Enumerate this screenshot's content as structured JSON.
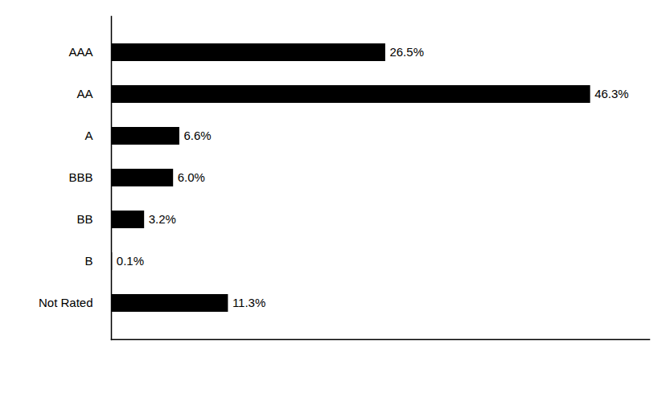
{
  "chart_data": {
    "type": "bar",
    "orientation": "horizontal",
    "categories": [
      "AAA",
      "AA",
      "A",
      "BBB",
      "BB",
      "B",
      "Not Rated"
    ],
    "values": [
      26.5,
      46.3,
      6.6,
      6.0,
      3.2,
      0.1,
      11.3
    ],
    "value_labels": [
      "26.5%",
      "46.3%",
      "6.6%",
      "6.0%",
      "3.2%",
      "0.1%",
      "11.3%"
    ],
    "color": "#000000",
    "xlim": [
      0,
      52
    ],
    "grid": false,
    "data_labels": true,
    "tick_labels": "y"
  }
}
